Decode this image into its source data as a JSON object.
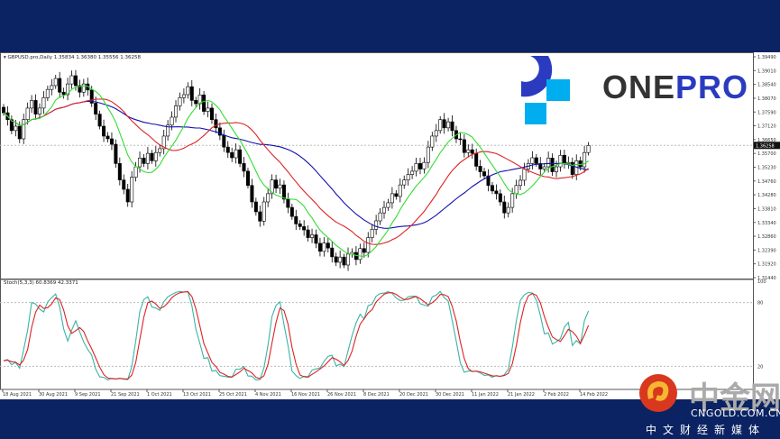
{
  "chart_header": {
    "symbol": "GBPUSD.pro,Daily",
    "ohlc": "1.35834 1.36380 1.35556 1.36258"
  },
  "stoch_header": "Stoch(5,3,3) 60.8369 42.3371",
  "last_price": "1.36258",
  "price_axis": [
    "1.39490",
    "1.39010",
    "1.38540",
    "1.38070",
    "1.37590",
    "1.37120",
    "1.36650",
    "1.35700",
    "1.35230",
    "1.34760",
    "1.34280",
    "1.33810",
    "1.33340",
    "1.32860",
    "1.32390",
    "1.31920",
    "1.31440"
  ],
  "stoch_axis": [
    "100",
    "80",
    "20"
  ],
  "date_axis": [
    "18 Aug 2021",
    "30 Aug 2021",
    "9 Sep 2021",
    "21 Sep 2021",
    "1 Oct 2021",
    "13 Oct 2021",
    "25 Oct 2021",
    "4 Nov 2021",
    "16 Nov 2021",
    "26 Nov 2021",
    "8 Dec 2021",
    "20 Dec 2021",
    "30 Dec 2021",
    "11 Jan 2022",
    "21 Jan 2022",
    "2 Feb 2022",
    "14 Feb 2022"
  ],
  "logo": {
    "text_dark": "ONE",
    "text_blue": "PRO",
    "colors": {
      "dark": "#333333",
      "blue": "#2a3bbf",
      "cyan": "#00aeef"
    }
  },
  "watermark": {
    "name": "中金网",
    "url": "CNGOLD.COM.CN",
    "tagline": "中文财经新媒体"
  },
  "colors": {
    "ma_fast": "#33dd33",
    "ma_mid": "#dd2222",
    "ma_slow": "#1111aa",
    "stoch_k": "#3bb3a8",
    "stoch_d": "#dd2222",
    "background": "#0b2363"
  },
  "chart_data": {
    "type": "candlestick",
    "ylim": [
      1.3144,
      1.3949
    ],
    "stoch_levels": [
      80,
      20
    ],
    "closes": [
      1.3745,
      1.372,
      1.368,
      1.3696,
      1.365,
      1.372,
      1.3762,
      1.379,
      1.374,
      1.3762,
      1.38,
      1.383,
      1.3844,
      1.387,
      1.382,
      1.3811,
      1.385,
      1.388,
      1.3844,
      1.382,
      1.385,
      1.3828,
      1.378,
      1.374,
      1.3696,
      1.366,
      1.365,
      1.363,
      1.356,
      1.35,
      1.3466,
      1.342,
      1.351,
      1.3548,
      1.358,
      1.356,
      1.3597,
      1.357,
      1.36,
      1.3614,
      1.366,
      1.37,
      1.3729,
      1.377,
      1.38,
      1.3811,
      1.384,
      1.379,
      1.3778,
      1.381,
      1.375,
      1.3762,
      1.372,
      1.369,
      1.3663,
      1.362,
      1.36,
      1.3581,
      1.361,
      1.356,
      1.3532,
      1.348,
      1.342,
      1.3384,
      1.335,
      1.342,
      1.345,
      1.35,
      1.347,
      1.3482,
      1.343,
      1.34,
      1.3367,
      1.334,
      1.333,
      1.3318,
      1.329,
      1.33,
      1.3269,
      1.324,
      1.327,
      1.3252,
      1.322,
      1.32,
      1.3219,
      1.319,
      1.323,
      1.3236,
      1.321,
      1.325,
      1.3236,
      1.329,
      1.332,
      1.3351,
      1.338,
      1.34,
      1.3417,
      1.345,
      1.344,
      1.3482,
      1.35,
      1.352,
      1.3532,
      1.356,
      1.354,
      1.3564,
      1.362,
      1.366,
      1.368,
      1.372,
      1.369,
      1.3712,
      1.368,
      1.365,
      1.3647,
      1.36,
      1.361,
      1.3597,
      1.355,
      1.353,
      1.3515,
      1.348,
      1.346,
      1.345,
      1.342,
      1.338,
      1.34,
      1.345,
      1.348,
      1.3499,
      1.354,
      1.356,
      1.3581,
      1.356,
      1.354,
      1.3548,
      1.358,
      1.353,
      1.3548,
      1.359,
      1.356,
      1.3564,
      1.352,
      1.357,
      1.3548,
      1.36,
      1.3626
    ]
  }
}
